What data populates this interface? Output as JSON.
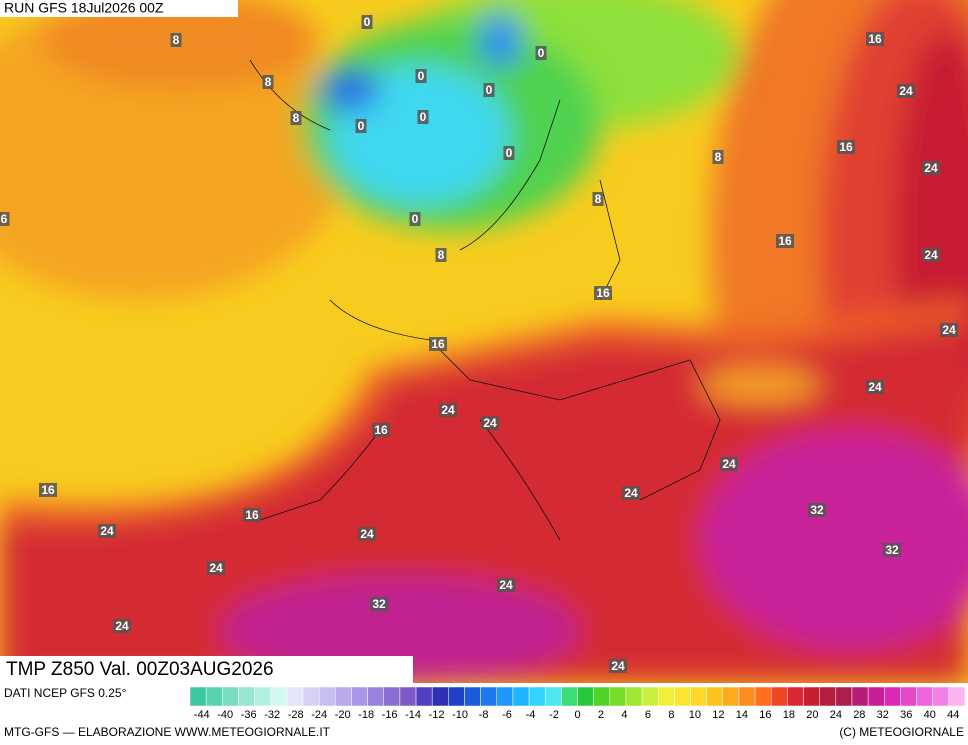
{
  "header": {
    "run": "RUN GFS 18Jul2026 00Z"
  },
  "map": {
    "title": "TMP Z850 Val. 00Z03AUG2026",
    "contour_labels": [
      0,
      8,
      0,
      16,
      8,
      0,
      0,
      24,
      8,
      0,
      0,
      16,
      0,
      8,
      24,
      8,
      6,
      0,
      16,
      24,
      8,
      16,
      24,
      16,
      24,
      24,
      24,
      16,
      24,
      16,
      24,
      32,
      16,
      24,
      24,
      32,
      24,
      24,
      32,
      24,
      24
    ]
  },
  "footer": {
    "source": "DATI NCEP GFS 0.25°",
    "credit": "MTG-GFS — ELABORAZIONE WWW.METEOGIORNALE.IT",
    "copyright": "(C) METEOGIORNALE"
  },
  "colorbar": {
    "colors": [
      "#3cc8a0",
      "#5ad2b0",
      "#78dcc0",
      "#96e6d0",
      "#b4f0e0",
      "#d2f8f0",
      "#e6e6fa",
      "#d7d2f5",
      "#c8bef0",
      "#b9aaeb",
      "#aa96e6",
      "#9b82dc",
      "#8c6ed2",
      "#7d5ac8",
      "#5040c0",
      "#3030b4",
      "#2040c8",
      "#1e5adc",
      "#1e78f0",
      "#1e96fa",
      "#1eb4ff",
      "#32d2ff",
      "#50e6f0",
      "#3cdc78",
      "#28c83c",
      "#50d228",
      "#78dc28",
      "#a0e632",
      "#c8f03c",
      "#f0f03c",
      "#fae632",
      "#ffd728",
      "#ffc31e",
      "#ffaa1e",
      "#ff8c1e",
      "#ff6e1e",
      "#f04628",
      "#dc2832",
      "#c81e32",
      "#b41e3c",
      "#aa1e50",
      "#b41e78",
      "#c81e96",
      "#dc28b4",
      "#e646c8",
      "#f064dc",
      "#f082e6",
      "#fab4f0"
    ],
    "labels": [
      -44,
      -40,
      -36,
      -32,
      -28,
      -24,
      -20,
      -18,
      -16,
      -14,
      -12,
      -10,
      -8,
      -6,
      -4,
      -2,
      0,
      2,
      4,
      6,
      8,
      10,
      12,
      14,
      16,
      18,
      20,
      24,
      28,
      32,
      36,
      40,
      44
    ]
  }
}
